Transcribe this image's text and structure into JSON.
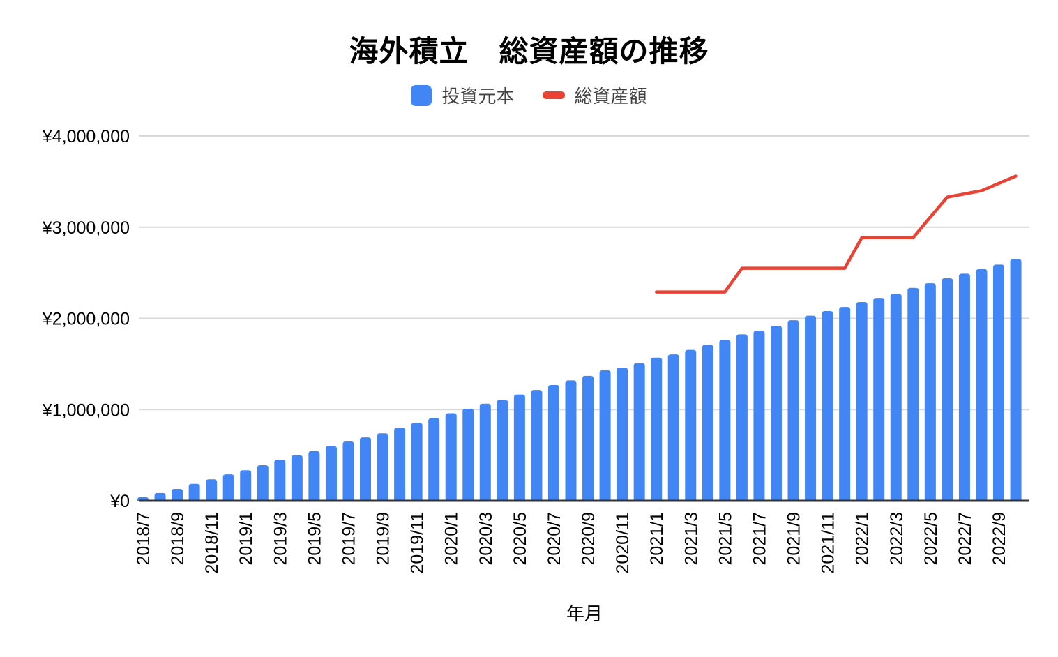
{
  "title": "海外積立　総資産額の推移",
  "legend": {
    "items": [
      {
        "label": "投資元本",
        "color": "#4285f4",
        "shape": "square"
      },
      {
        "label": "総資産額",
        "color": "#ea4335",
        "shape": "dash"
      }
    ]
  },
  "colors": {
    "bar": "#4285f4",
    "line": "#ea4335",
    "gridline": "#d9d9d9",
    "axis": "#333333",
    "tick_text": "#000000",
    "legend_text": "#424242"
  },
  "chart_data": {
    "type": "bar",
    "title": "海外積立　総資産額の推移",
    "xlabel": "年月",
    "ylabel": "",
    "x": [
      "2018/7",
      "2018/8",
      "2018/9",
      "2018/10",
      "2018/11",
      "2018/12",
      "2019/1",
      "2019/2",
      "2019/3",
      "2019/4",
      "2019/5",
      "2019/6",
      "2019/7",
      "2019/8",
      "2019/9",
      "2019/10",
      "2019/11",
      "2019/12",
      "2020/1",
      "2020/2",
      "2020/3",
      "2020/4",
      "2020/5",
      "2020/6",
      "2020/7",
      "2020/8",
      "2020/9",
      "2020/10",
      "2020/11",
      "2020/12",
      "2021/1",
      "2021/2",
      "2021/3",
      "2021/4",
      "2021/5",
      "2021/6",
      "2021/7",
      "2021/8",
      "2021/9",
      "2021/10",
      "2021/11",
      "2021/12",
      "2022/1",
      "2022/2",
      "2022/3",
      "2022/4",
      "2022/5",
      "2022/6",
      "2022/7",
      "2022/8",
      "2022/9",
      "2022/10"
    ],
    "x_tick_step": 2,
    "series": [
      {
        "name": "投資元本",
        "type": "bar",
        "color": "#4285f4",
        "values": [
          40000,
          85000,
          130000,
          185000,
          235000,
          290000,
          335000,
          390000,
          450000,
          500000,
          545000,
          600000,
          650000,
          695000,
          740000,
          800000,
          855000,
          905000,
          960000,
          1010000,
          1065000,
          1105000,
          1165000,
          1215000,
          1270000,
          1320000,
          1370000,
          1430000,
          1460000,
          1510000,
          1570000,
          1605000,
          1655000,
          1710000,
          1765000,
          1825000,
          1865000,
          1920000,
          1980000,
          2030000,
          2080000,
          2125000,
          2180000,
          2225000,
          2270000,
          2335000,
          2385000,
          2440000,
          2490000,
          2540000,
          2590000,
          2650000
        ]
      },
      {
        "name": "総資産額",
        "type": "line",
        "color": "#ea4335",
        "values": [
          null,
          null,
          null,
          null,
          null,
          null,
          null,
          null,
          null,
          null,
          null,
          null,
          null,
          null,
          null,
          null,
          null,
          null,
          null,
          null,
          null,
          null,
          null,
          null,
          null,
          null,
          null,
          null,
          null,
          null,
          2290000,
          2290000,
          2290000,
          2290000,
          2290000,
          2550000,
          2550000,
          2550000,
          2550000,
          2550000,
          2550000,
          2550000,
          2885000,
          2885000,
          2885000,
          2885000,
          3110000,
          3330000,
          3365000,
          3400000,
          3480000,
          3560000
        ]
      }
    ],
    "y_ticks": {
      "values": [
        0,
        1000000,
        2000000,
        3000000,
        4000000
      ],
      "labels": [
        "¥0",
        "¥1,000,000",
        "¥2,000,000",
        "¥3,000,000",
        "¥4,000,000"
      ]
    },
    "ylim": [
      0,
      4000000
    ],
    "grid": true,
    "legend_position": "top"
  }
}
